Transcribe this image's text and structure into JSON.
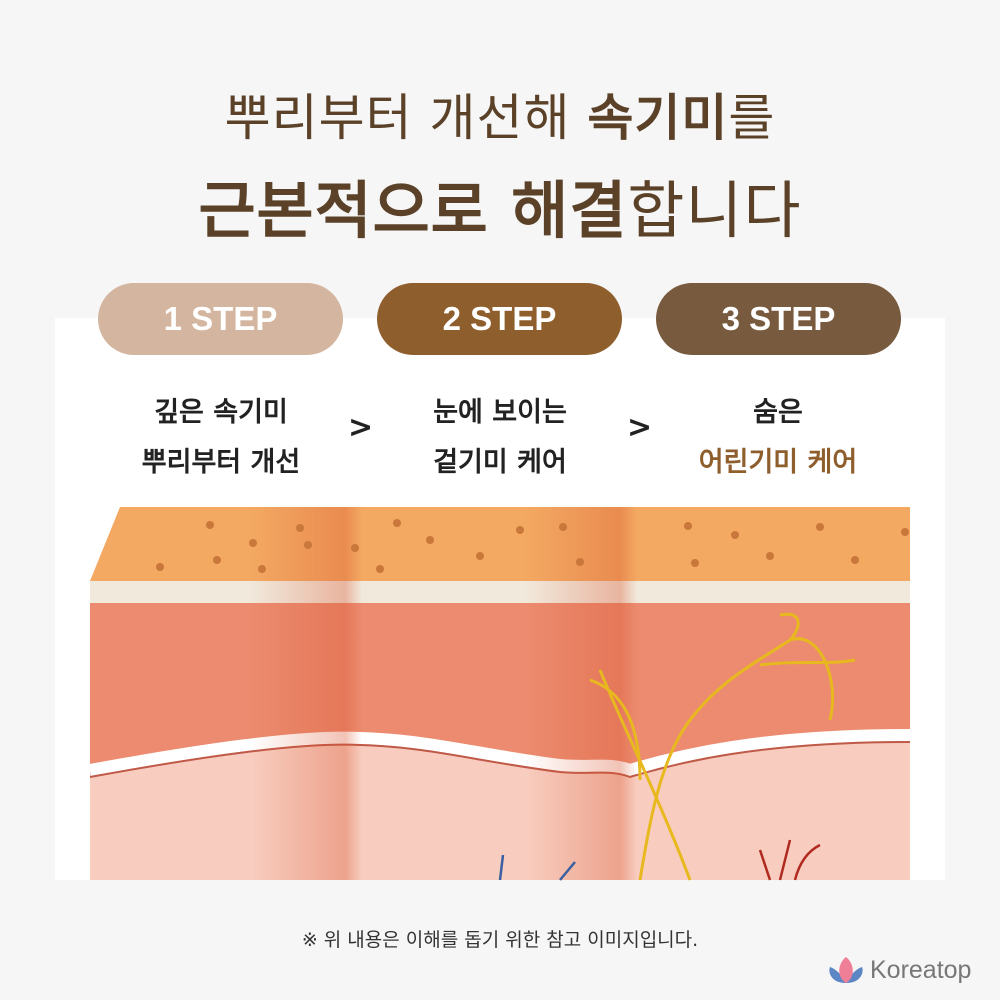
{
  "headline": {
    "line1_light": "뿌리부터 개선해 ",
    "line1_bold": "속기미",
    "line1_end": "를",
    "line2_bold": "근본적으로 해결",
    "line2_end": "합니다"
  },
  "steps": [
    {
      "label": "1 STEP",
      "color": "#d4b59f",
      "line1": "깊은 속기미",
      "line2": "뿌리부터 개선"
    },
    {
      "label": "2 STEP",
      "color": "#8f5e2d",
      "line1": "눈에 보이는",
      "line2": "겉기미 케어"
    },
    {
      "label": "3 STEP",
      "color": "#785a3e",
      "line1": "숨은",
      "line2": "어린기미 케어",
      "line2_color": "#8f5e2d"
    }
  ],
  "arrow": ">",
  "note": "※ 위 내용은 이해를 돕기 위한 참고 이미지입니다.",
  "brand": {
    "name": "Koreatop",
    "icon": "lotus-icon"
  }
}
